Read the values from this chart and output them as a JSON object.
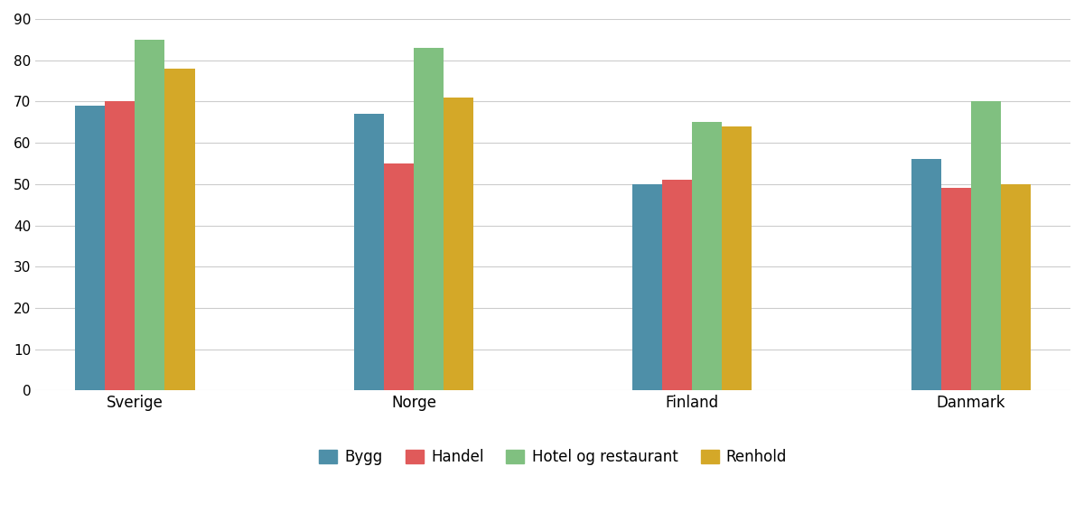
{
  "categories": [
    "Sverige",
    "Norge",
    "Finland",
    "Danmark"
  ],
  "series": {
    "Bygg": [
      69,
      67,
      50,
      56
    ],
    "Handel": [
      70,
      55,
      51,
      49
    ],
    "Hotel og restaurant": [
      85,
      83,
      65,
      70
    ],
    "Renhold": [
      78,
      71,
      64,
      50
    ]
  },
  "colors": {
    "Bygg": "#4e8fa8",
    "Handel": "#e05a5a",
    "Hotel og restaurant": "#80c080",
    "Renhold": "#d4a828"
  },
  "ylim": [
    0,
    90
  ],
  "yticks": [
    0,
    10,
    20,
    30,
    40,
    50,
    60,
    70,
    80,
    90
  ],
  "bar_width": 0.15,
  "background_color": "#ffffff",
  "grid_color": "#cccccc",
  "legend_labels": [
    "Bygg",
    "Handel",
    "Hotel og restaurant",
    "Renhold"
  ]
}
